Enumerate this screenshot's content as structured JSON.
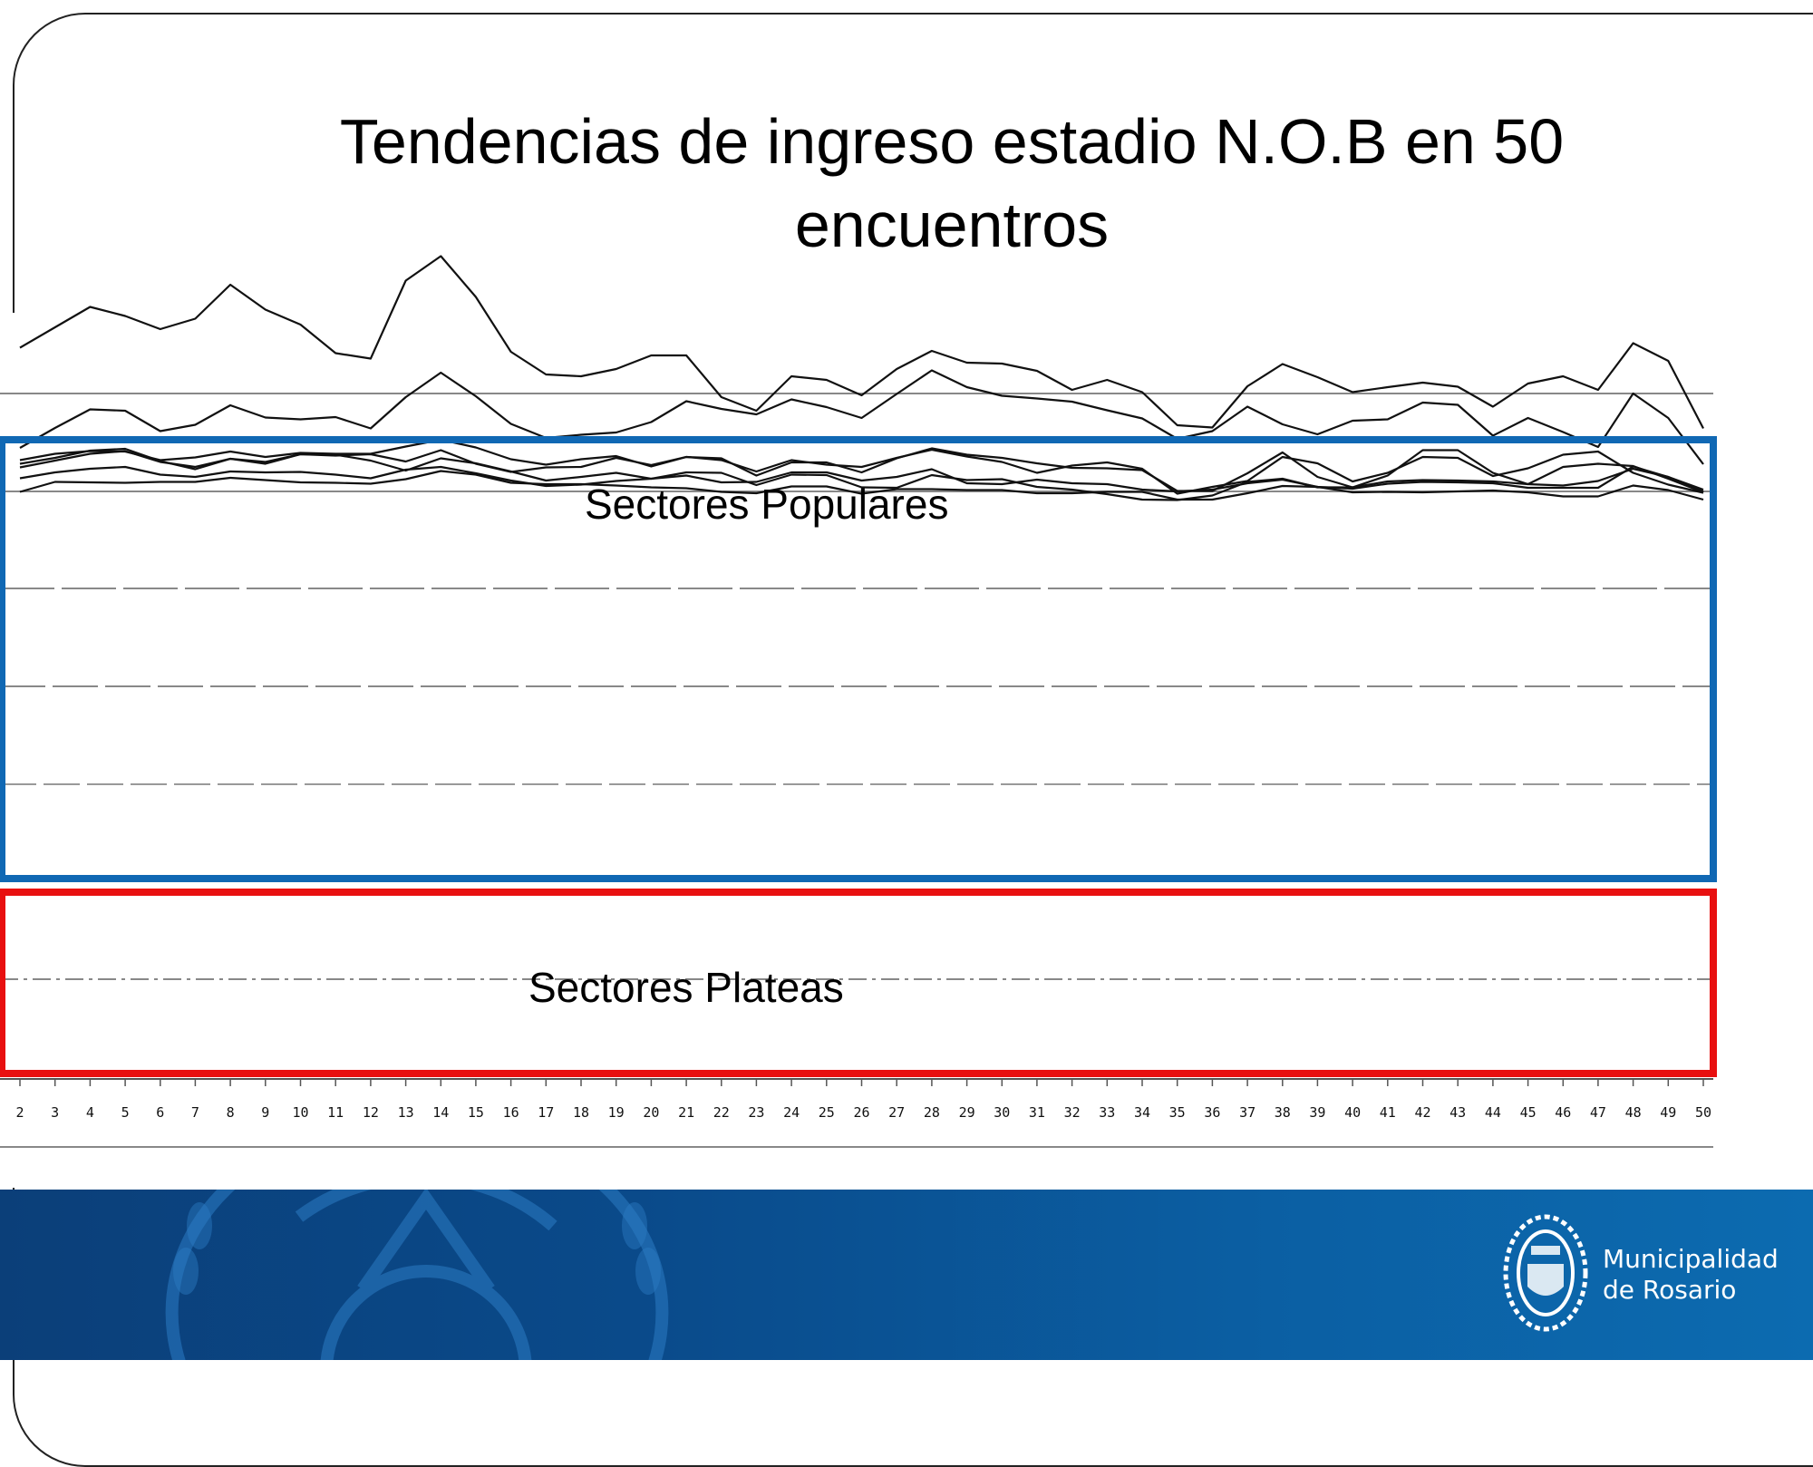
{
  "title": "Tendencias de ingreso estadio N.O.B en 50 encuentros",
  "annotations": {
    "populares": "Sectores Populares",
    "plateas": "Sectores Plateas"
  },
  "colors": {
    "populares_box": "#1068b4",
    "plateas_box": "#e81010",
    "footer": "#0b5fa3"
  },
  "footer": {
    "logo_line1": "Municipalidad",
    "logo_line2": "de Rosario",
    "logo_icon": "coat-of-arms-icon"
  },
  "chart_data": {
    "type": "line",
    "title": "Tendencias de ingreso estadio N.O.B en 50 encuentros",
    "xlabel": "",
    "ylabel": "",
    "grid": true,
    "x": [
      2,
      3,
      4,
      5,
      6,
      7,
      8,
      9,
      10,
      11,
      12,
      13,
      14,
      15,
      16,
      17,
      18,
      19,
      20,
      21,
      22,
      23,
      24,
      25,
      26,
      27,
      28,
      29,
      30,
      31,
      32,
      33,
      34,
      35,
      36,
      37,
      38,
      39,
      40,
      41,
      42,
      43,
      44,
      45,
      46,
      47,
      48,
      49,
      50
    ],
    "series": [
      {
        "values": [
          767,
          722,
          677,
          697,
          726,
          703,
          628,
          683,
          716,
          779,
          791,
          619,
          565,
          655,
          776,
          826,
          830,
          814,
          784,
          784,
          876,
          906,
          830,
          838,
          872,
          814,
          774,
          800,
          802,
          818,
          860,
          838,
          865,
          938,
          943,
          852,
          803,
          832,
          865,
          854,
          844,
          853,
          897,
          846,
          830,
          860,
          757,
          796,
          945
        ]
      },
      {
        "values": [
          988,
          944,
          903,
          906,
          951,
          937,
          894,
          921,
          925,
          920,
          945,
          876,
          822,
          874,
          935,
          966,
          959,
          954,
          931,
          885,
          902,
          914,
          881,
          898,
          922,
          869,
          817,
          854,
          873,
          879,
          886,
          905,
          923,
          968,
          951,
          897,
          936,
          958,
          928,
          925,
          888,
          893,
          961,
          922,
          953,
          986,
          868,
          922,
          1024
        ]
      },
      {
        "values": [
          1015,
          1001,
          995,
          996,
          1015,
          1009,
          996,
          1008,
          999,
          1001,
          1001,
          985,
          970,
          987,
          1013,
          1025,
          1013,
          1006,
          1029,
          1008,
          1011,
          1049,
          1020,
          1020,
          1042,
          1011,
          989,
          1003,
          1010,
          1022,
          1032,
          1033,
          1037,
          1083,
          1083,
          1044,
          998,
          1052,
          1075,
          1049,
          993,
          993,
          1043,
          1068,
          1030,
          1023,
          1028,
          1056,
          1086
        ]
      },
      {
        "values": [
          1031,
          1016,
          1001,
          995,
          1019,
          1030,
          1012,
          1019,
          1002,
          1005,
          1002,
          1018,
          993,
          1023,
          1041,
          1031,
          1030,
          1010,
          1026,
          1008,
          1015,
          1040,
          1015,
          1025,
          1030,
          1010,
          992,
          1007,
          1019,
          1043,
          1027,
          1020,
          1034,
          1089,
          1074,
          1061,
          1008,
          1022,
          1062,
          1043,
          1008,
          1010,
          1050,
          1033,
          1003,
          996,
          1043,
          1069,
          1087
        ]
      },
      {
        "values": [
          1023,
          1010,
          994,
          990,
          1017,
          1035,
          1012,
          1023,
          1002,
          1003,
          1016,
          1038,
          1011,
          1022,
          1040,
          1060,
          1052,
          1043,
          1056,
          1042,
          1043,
          1070,
          1047,
          1048,
          1075,
          1076,
          1048,
          1059,
          1057,
          1074,
          1080,
          1090,
          1102,
          1103,
          1093,
          1063,
          1056,
          1075,
          1075,
          1062,
          1059,
          1060,
          1062,
          1068,
          1071,
          1061,
          1034,
          1052,
          1084
        ]
      },
      {
        "values": [
          1055,
          1042,
          1034,
          1030,
          1047,
          1052,
          1040,
          1042,
          1041,
          1047,
          1055,
          1036,
          1030,
          1044,
          1060,
          1072,
          1069,
          1061,
          1056,
          1049,
          1064,
          1063,
          1042,
          1042,
          1060,
          1052,
          1035,
          1066,
          1068,
          1058,
          1066,
          1068,
          1080,
          1084,
          1080,
          1066,
          1058,
          1074,
          1078,
          1067,
          1063,
          1064,
          1066,
          1076,
          1076,
          1076,
          1029,
          1052,
          1080
        ]
      },
      {
        "values": [
          1085,
          1063,
          1064,
          1065,
          1063,
          1063,
          1054,
          1059,
          1064,
          1065,
          1067,
          1057,
          1039,
          1047,
          1065,
          1068,
          1068,
          1071,
          1075,
          1077,
          1085,
          1088,
          1073,
          1073,
          1089,
          1079,
          1079,
          1081,
          1081,
          1088,
          1088,
          1085,
          1085,
          1102,
          1102,
          1088,
          1072,
          1074,
          1086,
          1085,
          1086,
          1084,
          1082,
          1086,
          1095,
          1095,
          1071,
          1081,
          1102
        ]
      }
    ]
  }
}
